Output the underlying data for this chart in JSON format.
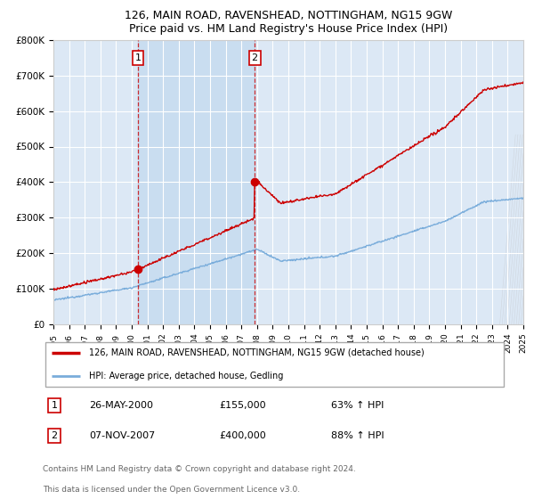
{
  "title": "126, MAIN ROAD, RAVENSHEAD, NOTTINGHAM, NG15 9GW",
  "subtitle": "Price paid vs. HM Land Registry's House Price Index (HPI)",
  "ylim": [
    0,
    800000
  ],
  "yticks": [
    0,
    100000,
    200000,
    300000,
    400000,
    500000,
    600000,
    700000,
    800000
  ],
  "ytick_labels": [
    "£0",
    "£100K",
    "£200K",
    "£300K",
    "£400K",
    "£500K",
    "£600K",
    "£700K",
    "£800K"
  ],
  "bg_color": "#dce8f5",
  "grid_color": "#ffffff",
  "red_color": "#cc0000",
  "blue_color": "#7aaddb",
  "transaction1_date": 2000.4,
  "transaction1_price": 155000,
  "transaction2_date": 2007.85,
  "transaction2_price": 400000,
  "legend_label_red": "126, MAIN ROAD, RAVENSHEAD, NOTTINGHAM, NG15 9GW (detached house)",
  "legend_label_blue": "HPI: Average price, detached house, Gedling",
  "table_row1": [
    "1",
    "26-MAY-2000",
    "£155,000",
    "63% ↑ HPI"
  ],
  "table_row2": [
    "2",
    "07-NOV-2007",
    "£400,000",
    "88% ↑ HPI"
  ],
  "footnote1": "Contains HM Land Registry data © Crown copyright and database right 2024.",
  "footnote2": "This data is licensed under the Open Government Licence v3.0.",
  "xmin": 1995,
  "xmax": 2025
}
